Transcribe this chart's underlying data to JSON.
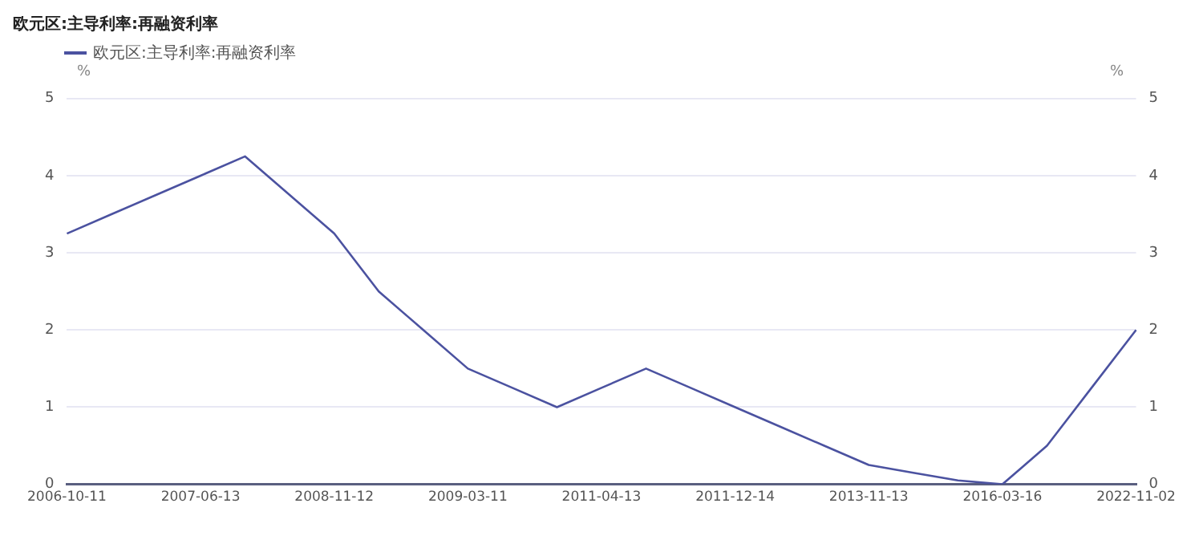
{
  "chart_data": {
    "type": "line",
    "title": "欧元区:主导利率:再融资利率",
    "ylabel": "%",
    "y2label": "%",
    "categories": [
      "2006-10-11",
      null,
      null,
      "2007-06-13",
      null,
      null,
      "2008-11-12",
      null,
      null,
      "2009-03-11",
      null,
      null,
      "2011-04-13",
      null,
      null,
      "2011-12-14",
      null,
      null,
      "2013-11-13",
      null,
      null,
      "2016-03-16",
      null,
      null,
      "2022-11-02"
    ],
    "series": [
      {
        "name": "欧元区:主导利率:再融资利率",
        "color": "#4b52a0",
        "values": [
          3.25,
          3.5,
          3.75,
          4.0,
          4.25,
          3.75,
          3.25,
          2.5,
          2.0,
          1.5,
          1.25,
          1.0,
          1.25,
          1.5,
          1.25,
          1.0,
          0.75,
          0.5,
          0.25,
          0.15,
          0.05,
          0.0,
          0.5,
          1.25,
          2.0
        ]
      }
    ],
    "ylim": [
      0,
      5
    ],
    "yticks": [
      0,
      1,
      2,
      3,
      4,
      5
    ],
    "y2lim": [
      0,
      5
    ],
    "y2ticks": [
      0,
      1,
      2,
      3,
      4,
      5
    ],
    "grid": "y",
    "legend": "top left",
    "marker": "none",
    "line_style": "solid"
  }
}
